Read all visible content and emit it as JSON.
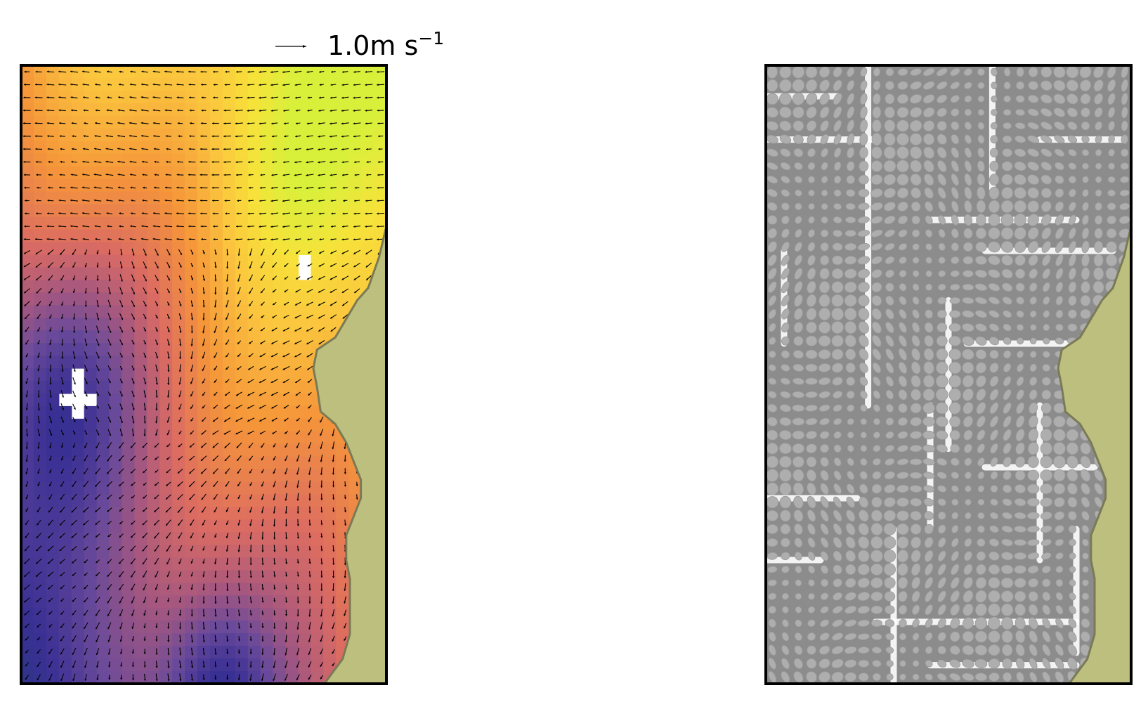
{
  "figure": {
    "key": {
      "value": "1.0m s",
      "superscript": "−1"
    }
  },
  "chart_data": [
    {
      "type": "heatmap",
      "title": "",
      "xlabel": "",
      "ylabel": "",
      "grid": false,
      "legend": "none",
      "overlay": "quiver",
      "grid_size": {
        "cols": 29,
        "rows": 49
      },
      "colormap": [
        "#0c2340",
        "#1f3b78",
        "#3a3094",
        "#6a4a9a",
        "#a8587e",
        "#dc6c62",
        "#f5953a",
        "#fbc53e",
        "#f7e23a",
        "#d9f03a"
      ],
      "land_color": "#bdbf7e",
      "coast_color": "#7a7a55",
      "masked_cells": [
        [
          4,
          24
        ],
        [
          4,
          25
        ],
        [
          4,
          26
        ],
        [
          4,
          27
        ],
        [
          3,
          26
        ],
        [
          5,
          26
        ],
        [
          22,
          15
        ],
        [
          22,
          16
        ]
      ]
    },
    {
      "type": "heatmap",
      "title": "",
      "xlabel": "",
      "ylabel": "",
      "grid": false,
      "legend": "none",
      "overlay": "ellipse-grid",
      "ellipse_color": "#a8a8a8",
      "background_color": "#8c8c8c",
      "land_color": "#bdbf7e",
      "coast_color": "#7a7a55"
    }
  ]
}
